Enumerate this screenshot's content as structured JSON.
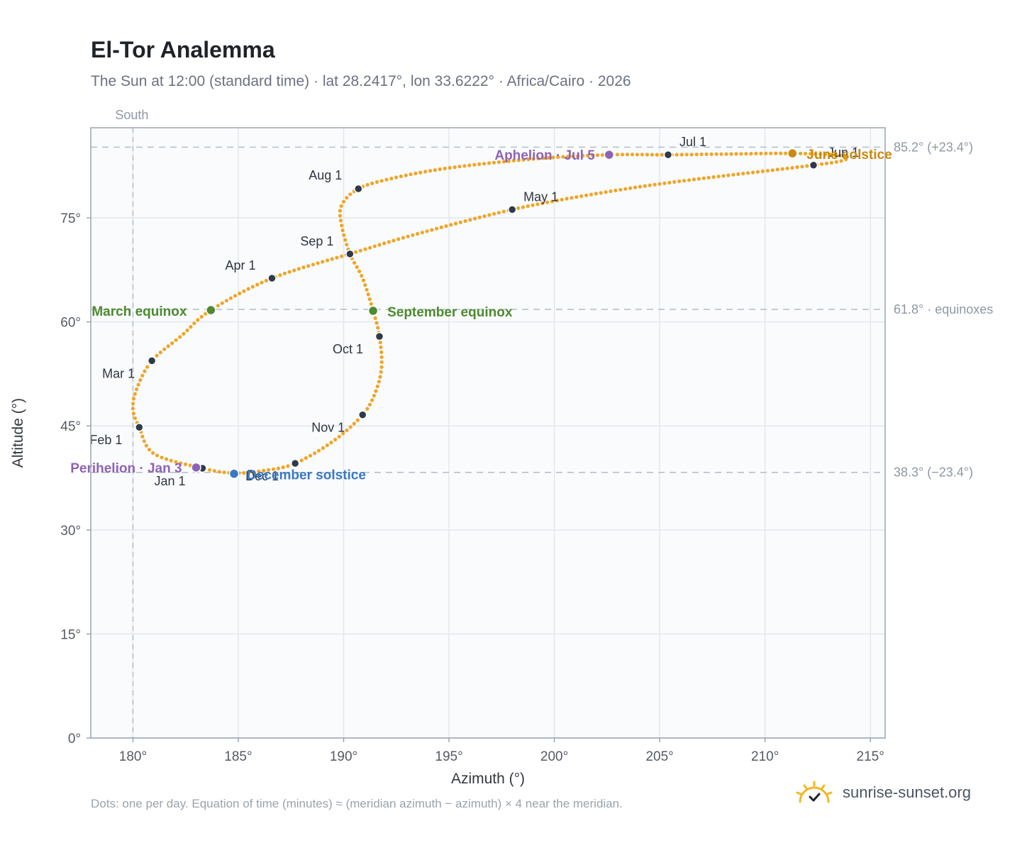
{
  "title": "El-Tor Analemma",
  "subtitle": "The Sun at 12:00 (standard time) · lat 28.2417°, lon 33.6222° · Africa/Cairo · 2026",
  "footnote": "Dots: one per day. Equation of time (minutes) ≈ (meridian azimuth − azimuth) × 4 near the meridian.",
  "brand": {
    "name": "sunrise-sunset.org",
    "icon": "sun-logo-icon",
    "color": "#f2b824"
  },
  "chart_data": {
    "type": "scatter",
    "xlabel": "Azimuth (°)",
    "ylabel": "Altitude (°)",
    "xlim": [
      178,
      215.7
    ],
    "ylim": [
      0,
      88
    ],
    "x_ticks": [
      180,
      185,
      190,
      195,
      200,
      205,
      210,
      215
    ],
    "x_tick_labels": [
      "180°",
      "185°",
      "190°",
      "195°",
      "200°",
      "205°",
      "210°",
      "215°"
    ],
    "y_ticks": [
      0,
      15,
      30,
      45,
      60,
      75
    ],
    "y_tick_labels": [
      "0°",
      "15°",
      "30°",
      "45°",
      "60°",
      "75°"
    ],
    "grid": true,
    "meridian": {
      "azimuth": 180,
      "label": "South"
    },
    "reference_lines": [
      {
        "altitude": 85.2,
        "label": "85.2° (+23.4°)"
      },
      {
        "altitude": 61.8,
        "label": "61.8° · equinoxes"
      },
      {
        "altitude": 38.3,
        "label": "38.3° (−23.4°)"
      }
    ],
    "series_color": "#f0a526",
    "month_markers": [
      {
        "label": "Jan 1",
        "az": 183.3,
        "alt": 38.9
      },
      {
        "label": "Feb 1",
        "az": 180.3,
        "alt": 44.8
      },
      {
        "label": "Mar 1",
        "az": 180.9,
        "alt": 54.4
      },
      {
        "label": "Apr 1",
        "az": 186.6,
        "alt": 66.3
      },
      {
        "label": "May 1",
        "az": 198.0,
        "alt": 76.2
      },
      {
        "label": "Jun 1",
        "az": 212.3,
        "alt": 82.6
      },
      {
        "label": "Jul 1",
        "az": 205.4,
        "alt": 84.1
      },
      {
        "label": "Aug 1",
        "az": 190.7,
        "alt": 79.2
      },
      {
        "label": "Sep 1",
        "az": 190.3,
        "alt": 69.8
      },
      {
        "label": "Oct 1",
        "az": 191.7,
        "alt": 57.9
      },
      {
        "label": "Nov 1",
        "az": 190.9,
        "alt": 46.6
      },
      {
        "label": "Dec 1",
        "az": 187.7,
        "alt": 39.6
      }
    ],
    "events": [
      {
        "label": "March equinox",
        "az": 183.7,
        "alt": 61.7,
        "color": "#4e8a2f"
      },
      {
        "label": "June solstice",
        "az": 211.3,
        "alt": 84.3,
        "color": "#c98a10"
      },
      {
        "label": "September equinox",
        "az": 191.4,
        "alt": 61.6,
        "color": "#4e8a2f"
      },
      {
        "label": "December solstice",
        "az": 184.8,
        "alt": 38.1,
        "color": "#3a78c2"
      },
      {
        "label": "Perihelion · Jan 3",
        "az": 183.0,
        "alt": 39.0,
        "color": "#8e63b5"
      },
      {
        "label": "Aphelion · Jul 5",
        "az": 202.6,
        "alt": 84.1,
        "color": "#8e63b5"
      }
    ],
    "curve_waypoints": [
      [
        184.8,
        38.2
      ],
      [
        183.3,
        38.9
      ],
      [
        181.0,
        41.0
      ],
      [
        180.3,
        44.8
      ],
      [
        180.0,
        47.5
      ],
      [
        180.2,
        50.5
      ],
      [
        180.9,
        54.4
      ],
      [
        182.3,
        58.0
      ],
      [
        183.7,
        61.7
      ],
      [
        186.6,
        66.3
      ],
      [
        190.5,
        70.0
      ],
      [
        193.5,
        72.7
      ],
      [
        198.0,
        76.2
      ],
      [
        202.0,
        78.5
      ],
      [
        206.0,
        80.3
      ],
      [
        212.3,
        82.6
      ],
      [
        213.8,
        83.4
      ],
      [
        213.5,
        84.0
      ],
      [
        211.3,
        84.3
      ],
      [
        208.0,
        84.2
      ],
      [
        205.4,
        84.1
      ],
      [
        202.6,
        84.1
      ],
      [
        199.0,
        83.5
      ],
      [
        195.0,
        82.2
      ],
      [
        192.3,
        80.7
      ],
      [
        190.7,
        79.2
      ],
      [
        189.9,
        76.8
      ],
      [
        189.9,
        74.0
      ],
      [
        190.3,
        69.8
      ],
      [
        190.9,
        66.3
      ],
      [
        191.4,
        61.6
      ],
      [
        191.7,
        57.9
      ],
      [
        191.8,
        53.5
      ],
      [
        191.5,
        49.8
      ],
      [
        190.9,
        46.6
      ],
      [
        189.5,
        42.8
      ],
      [
        187.7,
        39.6
      ],
      [
        186.3,
        38.6
      ],
      [
        184.8,
        38.2
      ]
    ]
  }
}
